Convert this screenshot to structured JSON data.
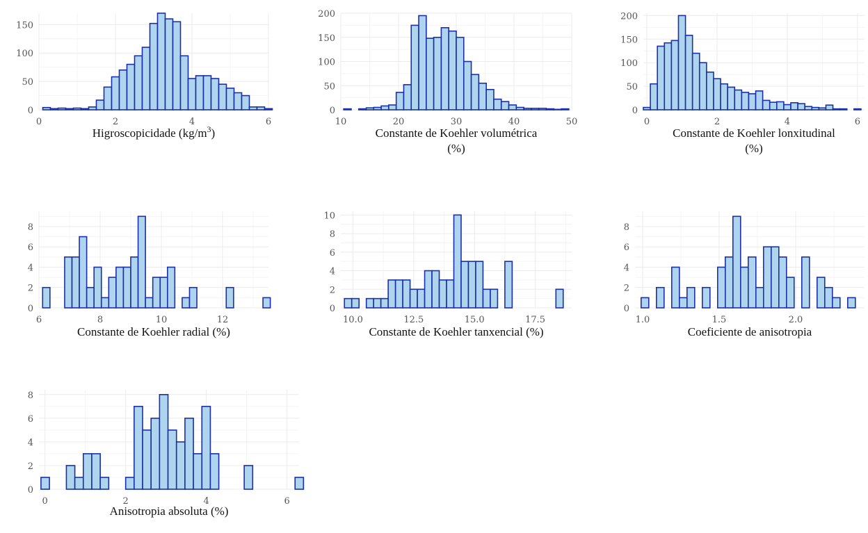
{
  "chart_data": [
    {
      "type": "bar",
      "subtype": "histogram",
      "xlabel": "Higroscopicidade (kg/m3)",
      "xlabel_parts": [
        "Higroscopicidade (kg/m",
        "3",
        ")"
      ],
      "xlim": [
        0,
        6
      ],
      "ylim": [
        0,
        170
      ],
      "xticks": [
        0,
        2,
        4,
        6
      ],
      "yticks": [
        0,
        50,
        100,
        150
      ],
      "bins": {
        "start": 0.1,
        "width": 0.2
      },
      "values": [
        4,
        2,
        3,
        2,
        3,
        2,
        5,
        17,
        40,
        58,
        70,
        80,
        95,
        110,
        152,
        170,
        160,
        155,
        95,
        55,
        60,
        60,
        55,
        45,
        38,
        30,
        25,
        5,
        5,
        2
      ]
    },
    {
      "type": "bar",
      "subtype": "histogram",
      "xlabel": "Constante de Koehler volumétrica (%)",
      "xlabel_lines": [
        "Constante de Koehler volumétrica",
        "(%)"
      ],
      "xlim": [
        10,
        50
      ],
      "ylim": [
        0,
        200
      ],
      "xticks": [
        10,
        20,
        30,
        40,
        50
      ],
      "yticks": [
        0,
        50,
        100,
        150,
        200
      ],
      "bins": {
        "start": 10.5,
        "width": 1.3
      },
      "values": [
        2,
        0,
        2,
        4,
        5,
        8,
        10,
        36,
        52,
        175,
        195,
        148,
        150,
        170,
        163,
        150,
        100,
        73,
        55,
        42,
        22,
        17,
        10,
        5,
        3,
        3,
        3,
        2,
        1,
        2
      ]
    },
    {
      "type": "bar",
      "subtype": "histogram",
      "xlabel": "Constante de Koehler lonxitudinal (%)",
      "xlabel_lines": [
        "Constante de Koehler lonxitudinal",
        "(%)"
      ],
      "xlim": [
        -0.1,
        6.2
      ],
      "ylim": [
        0,
        205
      ],
      "xticks": [
        0,
        2,
        4,
        6
      ],
      "yticks": [
        0,
        50,
        100,
        150,
        200
      ],
      "bins": {
        "start": -0.1,
        "width": 0.2
      },
      "values": [
        5,
        55,
        135,
        142,
        147,
        200,
        158,
        120,
        100,
        80,
        66,
        55,
        48,
        42,
        37,
        34,
        40,
        20,
        16,
        17,
        11,
        15,
        13,
        7,
        5,
        4,
        10,
        2,
        2,
        0,
        2
      ]
    },
    {
      "type": "bar",
      "subtype": "histogram",
      "xlabel": "Constante de Koehler radial (%)",
      "xlim": [
        6.0,
        13.5
      ],
      "ylim": [
        0,
        9.5
      ],
      "xticks": [
        6,
        8,
        10,
        12
      ],
      "yticks": [
        0,
        2,
        4,
        6,
        8
      ],
      "bins": {
        "start": 6.12,
        "width": 0.24
      },
      "values": [
        2,
        0,
        0,
        5,
        5,
        7,
        2,
        4,
        1,
        3,
        4,
        4,
        5,
        9,
        1,
        3,
        3,
        4,
        0,
        1,
        2,
        0,
        0,
        0,
        0,
        2,
        0,
        0,
        0,
        0,
        1
      ]
    },
    {
      "type": "bar",
      "subtype": "histogram",
      "xlabel": "Constante de Koehler tanxencial (%)",
      "xlim": [
        9.5,
        19.0
      ],
      "ylim": [
        0,
        10.4
      ],
      "xticks": [
        10.0,
        12.5,
        15.0,
        17.5
      ],
      "yticks": [
        0,
        2,
        4,
        6,
        8,
        10
      ],
      "bins": {
        "start": 9.65,
        "width": 0.3
      },
      "values": [
        1,
        1,
        0,
        1,
        1,
        1,
        3,
        3,
        3,
        2,
        2,
        4,
        4,
        3,
        3,
        10,
        5,
        5,
        5,
        2,
        2,
        0,
        5,
        0,
        0,
        0,
        0,
        0,
        0,
        2
      ]
    },
    {
      "type": "bar",
      "subtype": "histogram",
      "xlabel": "Coeficiente de anisotropia",
      "xlim": [
        0.95,
        2.45
      ],
      "ylim": [
        0,
        9.5
      ],
      "xticks": [
        1.0,
        1.5,
        2.0
      ],
      "yticks": [
        0,
        2,
        4,
        6,
        8
      ],
      "bins": {
        "start": 0.99,
        "width": 0.05
      },
      "values": [
        1,
        0,
        2,
        0,
        4,
        1,
        2,
        0,
        2,
        0,
        4,
        5,
        9,
        4,
        5,
        2,
        6,
        6,
        5,
        3,
        0,
        5,
        0,
        3,
        2,
        1,
        0,
        1,
        0,
        0,
        1
      ]
    },
    {
      "type": "bar",
      "subtype": "histogram",
      "xlabel": "Anisotropia absoluta (%)",
      "xlim": [
        -0.15,
        6.3
      ],
      "ylim": [
        0,
        8.4
      ],
      "xticks": [
        0,
        2,
        4,
        6
      ],
      "yticks": [
        0,
        2,
        4,
        6,
        8
      ],
      "bins": {
        "start": -0.1,
        "width": 0.21
      },
      "values": [
        1,
        0,
        0,
        2,
        1,
        3,
        3,
        1,
        0,
        0,
        1,
        7,
        5,
        6,
        8,
        5,
        4,
        6,
        3,
        7,
        3,
        0,
        0,
        0,
        2,
        0,
        0,
        0,
        0,
        0,
        1
      ]
    }
  ]
}
